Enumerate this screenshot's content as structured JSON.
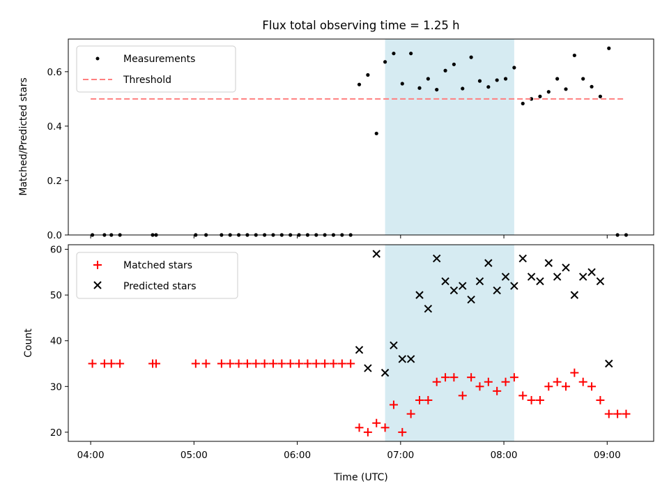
{
  "chart_data": [
    {
      "type": "scatter",
      "title": "Flux total observing time = 1.25 h",
      "xlabel": "",
      "ylabel": "Matched/Predicted stars",
      "xlim": [
        "03:47",
        "09:27"
      ],
      "ylim": [
        0,
        0.72
      ],
      "yticks": [
        "0.0",
        "0.2",
        "0.4",
        "0.6"
      ],
      "grid": false,
      "legend": "top-left",
      "shaded_interval": {
        "start": "06:51",
        "end": "08:06",
        "color": "#add8e6"
      },
      "series": [
        {
          "name": "Measurements",
          "marker": "dot",
          "color": "#000000",
          "points": [
            {
              "x": "04:01",
              "y": 0
            },
            {
              "x": "04:08",
              "y": 0
            },
            {
              "x": "04:12",
              "y": 0
            },
            {
              "x": "04:17",
              "y": 0
            },
            {
              "x": "04:36",
              "y": 0
            },
            {
              "x": "04:38",
              "y": 0
            },
            {
              "x": "05:01",
              "y": 0
            },
            {
              "x": "05:07",
              "y": 0
            },
            {
              "x": "05:16",
              "y": 0
            },
            {
              "x": "05:21",
              "y": 0
            },
            {
              "x": "05:26",
              "y": 0
            },
            {
              "x": "05:31",
              "y": 0
            },
            {
              "x": "05:36",
              "y": 0
            },
            {
              "x": "05:41",
              "y": 0
            },
            {
              "x": "05:46",
              "y": 0
            },
            {
              "x": "05:51",
              "y": 0
            },
            {
              "x": "05:56",
              "y": 0
            },
            {
              "x": "06:01",
              "y": 0
            },
            {
              "x": "06:06",
              "y": 0
            },
            {
              "x": "06:11",
              "y": 0
            },
            {
              "x": "06:16",
              "y": 0
            },
            {
              "x": "06:21",
              "y": 0
            },
            {
              "x": "06:26",
              "y": 0
            },
            {
              "x": "06:31",
              "y": 0
            },
            {
              "x": "06:36",
              "y": 0.553
            },
            {
              "x": "06:41",
              "y": 0.588
            },
            {
              "x": "06:46",
              "y": 0.373
            },
            {
              "x": "06:51",
              "y": 0.636
            },
            {
              "x": "06:56",
              "y": 0.667
            },
            {
              "x": "07:01",
              "y": 0.556
            },
            {
              "x": "07:06",
              "y": 0.667
            },
            {
              "x": "07:11",
              "y": 0.54
            },
            {
              "x": "07:16",
              "y": 0.574
            },
            {
              "x": "07:21",
              "y": 0.534
            },
            {
              "x": "07:26",
              "y": 0.604
            },
            {
              "x": "07:31",
              "y": 0.627
            },
            {
              "x": "07:36",
              "y": 0.538
            },
            {
              "x": "07:41",
              "y": 0.653
            },
            {
              "x": "07:46",
              "y": 0.566
            },
            {
              "x": "07:51",
              "y": 0.544
            },
            {
              "x": "07:56",
              "y": 0.569
            },
            {
              "x": "08:01",
              "y": 0.574
            },
            {
              "x": "08:06",
              "y": 0.615
            },
            {
              "x": "08:11",
              "y": 0.483
            },
            {
              "x": "08:16",
              "y": 0.5
            },
            {
              "x": "08:21",
              "y": 0.509
            },
            {
              "x": "08:26",
              "y": 0.526
            },
            {
              "x": "08:31",
              "y": 0.574
            },
            {
              "x": "08:36",
              "y": 0.536
            },
            {
              "x": "08:41",
              "y": 0.66
            },
            {
              "x": "08:46",
              "y": 0.574
            },
            {
              "x": "08:51",
              "y": 0.545
            },
            {
              "x": "08:56",
              "y": 0.509
            },
            {
              "x": "09:01",
              "y": 0.686
            },
            {
              "x": "09:06",
              "y": 0
            },
            {
              "x": "09:11",
              "y": 0
            }
          ]
        },
        {
          "name": "Threshold",
          "line_style": "dashed",
          "color": "#ff7f7f",
          "points": [
            {
              "x": "04:00",
              "y": 0.5
            },
            {
              "x": "09:10",
              "y": 0.5
            }
          ]
        }
      ]
    },
    {
      "type": "scatter",
      "title": "",
      "xlabel": "Time (UTC)",
      "ylabel": "Count",
      "xlim": [
        "03:47",
        "09:27"
      ],
      "ylim": [
        18,
        61
      ],
      "xticks": [
        "04:00",
        "05:00",
        "06:00",
        "07:00",
        "08:00",
        "09:00"
      ],
      "yticks": [
        "20",
        "30",
        "40",
        "50",
        "60"
      ],
      "grid": false,
      "legend": "top-left",
      "shaded_interval": {
        "start": "06:51",
        "end": "08:06",
        "color": "#add8e6"
      },
      "series": [
        {
          "name": "Matched stars",
          "marker": "plus",
          "color": "#ff0000",
          "points": [
            {
              "x": "04:01",
              "y": 35
            },
            {
              "x": "04:08",
              "y": 35
            },
            {
              "x": "04:12",
              "y": 35
            },
            {
              "x": "04:17",
              "y": 35
            },
            {
              "x": "04:36",
              "y": 35
            },
            {
              "x": "04:38",
              "y": 35
            },
            {
              "x": "05:01",
              "y": 35
            },
            {
              "x": "05:07",
              "y": 35
            },
            {
              "x": "05:16",
              "y": 35
            },
            {
              "x": "05:21",
              "y": 35
            },
            {
              "x": "05:26",
              "y": 35
            },
            {
              "x": "05:31",
              "y": 35
            },
            {
              "x": "05:36",
              "y": 35
            },
            {
              "x": "05:41",
              "y": 35
            },
            {
              "x": "05:46",
              "y": 35
            },
            {
              "x": "05:51",
              "y": 35
            },
            {
              "x": "05:56",
              "y": 35
            },
            {
              "x": "06:01",
              "y": 35
            },
            {
              "x": "06:06",
              "y": 35
            },
            {
              "x": "06:11",
              "y": 35
            },
            {
              "x": "06:16",
              "y": 35
            },
            {
              "x": "06:21",
              "y": 35
            },
            {
              "x": "06:26",
              "y": 35
            },
            {
              "x": "06:31",
              "y": 35
            },
            {
              "x": "06:36",
              "y": 21
            },
            {
              "x": "06:41",
              "y": 20
            },
            {
              "x": "06:46",
              "y": 22
            },
            {
              "x": "06:51",
              "y": 21
            },
            {
              "x": "06:56",
              "y": 26
            },
            {
              "x": "07:01",
              "y": 20
            },
            {
              "x": "07:06",
              "y": 24
            },
            {
              "x": "07:11",
              "y": 27
            },
            {
              "x": "07:16",
              "y": 27
            },
            {
              "x": "07:21",
              "y": 31
            },
            {
              "x": "07:26",
              "y": 32
            },
            {
              "x": "07:31",
              "y": 32
            },
            {
              "x": "07:36",
              "y": 28
            },
            {
              "x": "07:41",
              "y": 32
            },
            {
              "x": "07:46",
              "y": 30
            },
            {
              "x": "07:51",
              "y": 31
            },
            {
              "x": "07:56",
              "y": 29
            },
            {
              "x": "08:01",
              "y": 31
            },
            {
              "x": "08:06",
              "y": 32
            },
            {
              "x": "08:11",
              "y": 28
            },
            {
              "x": "08:16",
              "y": 27
            },
            {
              "x": "08:21",
              "y": 27
            },
            {
              "x": "08:26",
              "y": 30
            },
            {
              "x": "08:31",
              "y": 31
            },
            {
              "x": "08:36",
              "y": 30
            },
            {
              "x": "08:41",
              "y": 33
            },
            {
              "x": "08:46",
              "y": 31
            },
            {
              "x": "08:51",
              "y": 30
            },
            {
              "x": "08:56",
              "y": 27
            },
            {
              "x": "09:01",
              "y": 24
            },
            {
              "x": "09:06",
              "y": 24
            },
            {
              "x": "09:11",
              "y": 24
            }
          ]
        },
        {
          "name": "Predicted stars",
          "marker": "x",
          "color": "#000000",
          "points": [
            {
              "x": "06:36",
              "y": 38
            },
            {
              "x": "06:41",
              "y": 34
            },
            {
              "x": "06:46",
              "y": 59
            },
            {
              "x": "06:51",
              "y": 33
            },
            {
              "x": "06:56",
              "y": 39
            },
            {
              "x": "07:01",
              "y": 36
            },
            {
              "x": "07:06",
              "y": 36
            },
            {
              "x": "07:11",
              "y": 50
            },
            {
              "x": "07:16",
              "y": 47
            },
            {
              "x": "07:21",
              "y": 58
            },
            {
              "x": "07:26",
              "y": 53
            },
            {
              "x": "07:31",
              "y": 51
            },
            {
              "x": "07:36",
              "y": 52
            },
            {
              "x": "07:41",
              "y": 49
            },
            {
              "x": "07:46",
              "y": 53
            },
            {
              "x": "07:51",
              "y": 57
            },
            {
              "x": "07:56",
              "y": 51
            },
            {
              "x": "08:01",
              "y": 54
            },
            {
              "x": "08:06",
              "y": 52
            },
            {
              "x": "08:11",
              "y": 58
            },
            {
              "x": "08:16",
              "y": 54
            },
            {
              "x": "08:21",
              "y": 53
            },
            {
              "x": "08:26",
              "y": 57
            },
            {
              "x": "08:31",
              "y": 54
            },
            {
              "x": "08:36",
              "y": 56
            },
            {
              "x": "08:41",
              "y": 50
            },
            {
              "x": "08:46",
              "y": 54
            },
            {
              "x": "08:51",
              "y": 55
            },
            {
              "x": "08:56",
              "y": 53
            },
            {
              "x": "09:01",
              "y": 35
            }
          ]
        }
      ]
    }
  ]
}
